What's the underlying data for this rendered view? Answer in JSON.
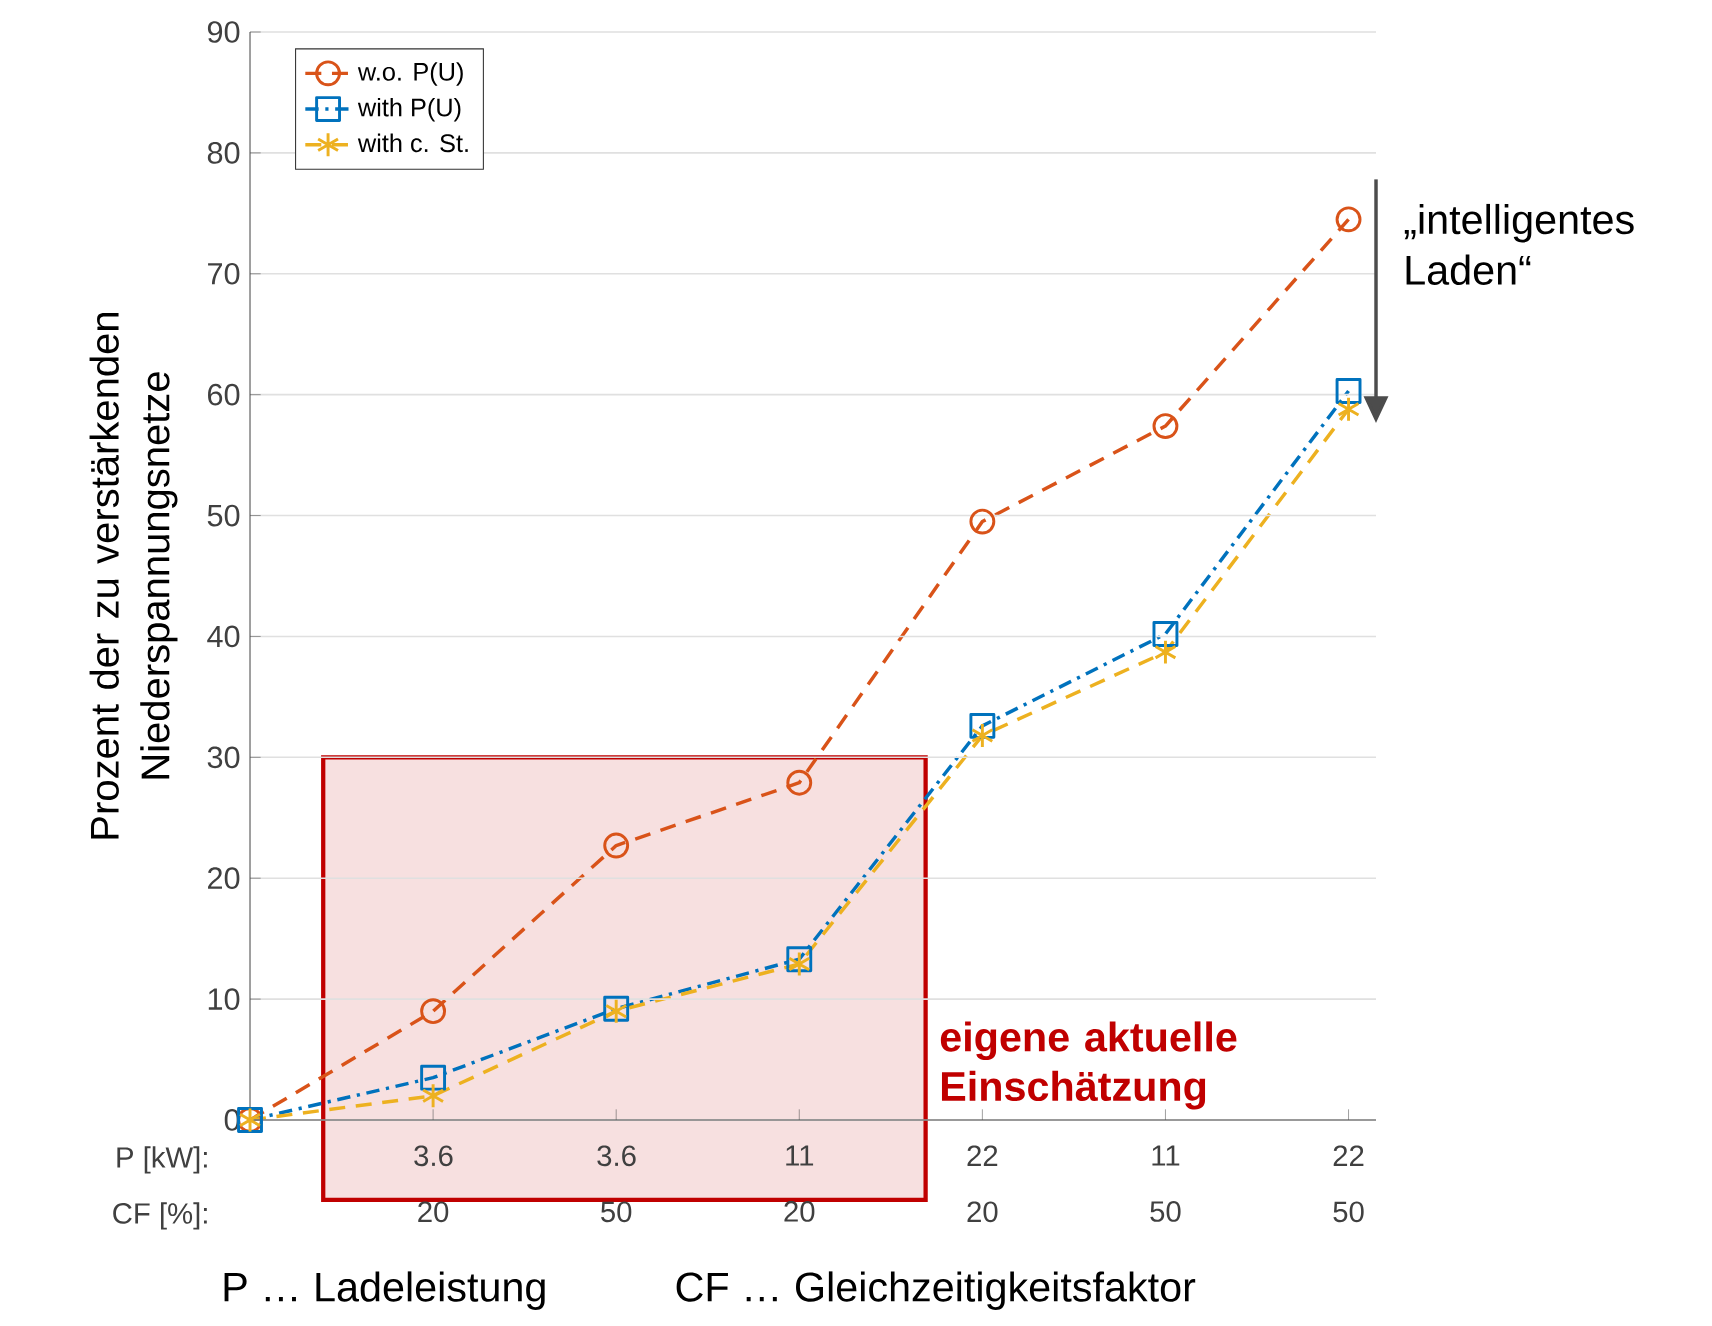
{
  "chart_data": {
    "type": "line",
    "ylabel": "Prozent der zu verstärkenden Niederspannungsnetze",
    "categories": [
      null,
      "3.6 20",
      "3.6 50",
      "11 20",
      "22 20",
      "11 50",
      "22 50"
    ],
    "series": [
      {
        "name": "w.o. P(U)",
        "color": "#d95319",
        "marker": "circle",
        "line_style": "dashed",
        "values": [
          0,
          9.0,
          22.7,
          27.9,
          49.5,
          57.4,
          74.5
        ]
      },
      {
        "name": "with P(U)",
        "color": "#0072bd",
        "marker": "square",
        "line_style": "dashdot",
        "values": [
          0,
          3.5,
          9.2,
          13.3,
          32.6,
          40.2,
          60.3
        ]
      },
      {
        "name": "with c. St.",
        "color": "#edb120",
        "marker": "cross",
        "line_style": "dashed",
        "values": [
          0,
          2.0,
          9.0,
          12.9,
          31.8,
          38.7,
          58.8
        ]
      }
    ],
    "ylim": [
      0,
      90
    ],
    "yticks": [
      0,
      10,
      20,
      30,
      40,
      50,
      60,
      70,
      80,
      90
    ],
    "grid": "y",
    "legend": "top left",
    "annotations": [
      "P [kW]:",
      "CF [%]:",
      "P … Ladeleistung",
      "CF … Gleichzeitigkeitsfaktor",
      "„intelligentes Laden“",
      "eigene aktuelle Einschätzung"
    ]
  }
}
